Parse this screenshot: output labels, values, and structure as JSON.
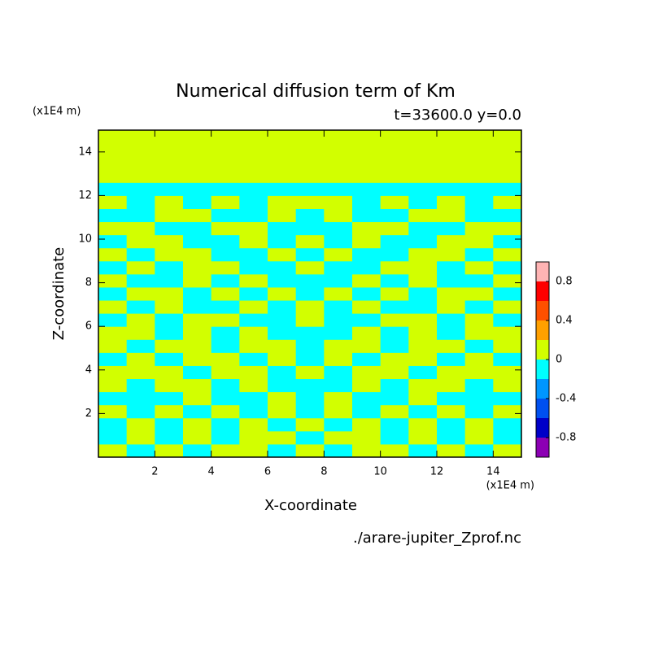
{
  "chart_data": {
    "type": "contour",
    "title": "Numerical diffusion term of Km",
    "subtitle": "t=33600.0 y=0.0",
    "xlabel": "X-coordinate",
    "ylabel": "Z-coordinate",
    "xunit": "(x1E4 m)",
    "yunit": "(x1E4 m)",
    "source": "./arare-jupiter_Zprof.nc",
    "xlim": [
      0,
      15
    ],
    "ylim": [
      0,
      15
    ],
    "xticks": [
      2,
      4,
      6,
      8,
      10,
      12,
      14
    ],
    "yticks": [
      2,
      4,
      6,
      8,
      10,
      12,
      14
    ],
    "x": [
      0.5,
      1.5,
      2.5,
      3.5,
      4.5,
      5.5,
      6.5,
      7.5,
      8.5,
      9.5,
      10.5,
      11.5,
      12.5,
      13.5,
      14.5
    ],
    "y": [
      0.3,
      0.9,
      1.5,
      2.1,
      2.7,
      3.3,
      3.9,
      4.5,
      5.1,
      5.7,
      6.3,
      6.9,
      7.5,
      8.1,
      8.7,
      9.3,
      9.9,
      10.5,
      11.1,
      11.7,
      12.3,
      12.9,
      13.5,
      14.1,
      14.7
    ],
    "z": [
      [
        0.1,
        -0.1,
        0.1,
        -0.1,
        0.1,
        0.1,
        -0.1,
        0.1,
        -0.1,
        0.1,
        0.1,
        -0.1,
        0.1,
        -0.1,
        0.1
      ],
      [
        -0.1,
        0.1,
        -0.1,
        0.1,
        -0.1,
        0.1,
        0.1,
        -0.1,
        0.1,
        0.1,
        -0.1,
        0.1,
        -0.1,
        0.1,
        -0.1
      ],
      [
        -0.1,
        0.1,
        -0.1,
        0.1,
        -0.1,
        0.1,
        -0.1,
        0.1,
        -0.1,
        0.1,
        -0.1,
        0.1,
        -0.1,
        0.1,
        -0.1
      ],
      [
        0.1,
        -0.1,
        0.1,
        -0.1,
        0.1,
        -0.1,
        0.1,
        -0.1,
        0.1,
        -0.1,
        0.1,
        -0.1,
        0.1,
        -0.1,
        0.1
      ],
      [
        -0.1,
        -0.1,
        -0.1,
        0.1,
        -0.1,
        -0.1,
        0.1,
        -0.1,
        0.1,
        -0.1,
        -0.1,
        0.1,
        -0.1,
        -0.1,
        -0.1
      ],
      [
        0.1,
        -0.1,
        0.1,
        0.1,
        -0.1,
        0.1,
        -0.1,
        -0.1,
        -0.1,
        0.1,
        -0.1,
        0.1,
        0.1,
        -0.1,
        0.1
      ],
      [
        0.1,
        0.1,
        0.1,
        -0.1,
        0.1,
        0.1,
        -0.1,
        0.1,
        -0.1,
        0.1,
        0.1,
        -0.1,
        0.1,
        0.1,
        0.1
      ],
      [
        -0.1,
        0.1,
        -0.1,
        0.1,
        0.1,
        -0.1,
        0.1,
        -0.1,
        0.1,
        -0.1,
        0.1,
        0.1,
        -0.1,
        0.1,
        -0.1
      ],
      [
        0.1,
        -0.1,
        0.1,
        0.1,
        -0.1,
        0.1,
        0.1,
        -0.1,
        0.1,
        0.1,
        -0.1,
        0.1,
        0.1,
        -0.1,
        0.1
      ],
      [
        0.1,
        0.1,
        -0.1,
        0.1,
        -0.1,
        0.1,
        -0.1,
        -0.1,
        -0.1,
        0.1,
        -0.1,
        0.1,
        -0.1,
        0.1,
        0.1
      ],
      [
        -0.1,
        0.1,
        -0.1,
        0.1,
        0.1,
        -0.1,
        -0.1,
        0.1,
        -0.1,
        -0.1,
        0.1,
        0.1,
        -0.1,
        0.1,
        -0.1
      ],
      [
        0.1,
        -0.1,
        0.1,
        -0.1,
        -0.1,
        0.1,
        -0.1,
        0.1,
        -0.1,
        0.1,
        -0.1,
        -0.1,
        0.1,
        -0.1,
        0.1
      ],
      [
        -0.1,
        0.1,
        0.1,
        -0.1,
        0.1,
        -0.1,
        0.1,
        -0.1,
        0.1,
        -0.1,
        0.1,
        -0.1,
        0.1,
        0.1,
        -0.1
      ],
      [
        0.1,
        -0.1,
        -0.1,
        0.1,
        -0.1,
        0.1,
        -0.1,
        -0.1,
        -0.1,
        0.1,
        -0.1,
        0.1,
        -0.1,
        -0.1,
        0.1
      ],
      [
        -0.1,
        0.1,
        -0.1,
        0.1,
        0.1,
        -0.1,
        -0.1,
        0.1,
        -0.1,
        -0.1,
        0.1,
        0.1,
        -0.1,
        0.1,
        -0.1
      ],
      [
        0.1,
        -0.1,
        0.1,
        0.1,
        -0.1,
        -0.1,
        0.1,
        -0.1,
        0.1,
        -0.1,
        -0.1,
        0.1,
        0.1,
        -0.1,
        0.1
      ],
      [
        -0.1,
        0.1,
        0.1,
        -0.1,
        -0.1,
        0.1,
        -0.1,
        0.1,
        -0.1,
        0.1,
        -0.1,
        -0.1,
        0.1,
        0.1,
        -0.1
      ],
      [
        0.1,
        0.1,
        -0.1,
        -0.1,
        0.1,
        0.1,
        -0.1,
        -0.1,
        -0.1,
        0.1,
        0.1,
        -0.1,
        -0.1,
        0.1,
        0.1
      ],
      [
        -0.1,
        -0.1,
        0.1,
        0.1,
        -0.1,
        -0.1,
        0.1,
        -0.1,
        0.1,
        -0.1,
        -0.1,
        0.1,
        0.1,
        -0.1,
        -0.1
      ],
      [
        0.1,
        -0.1,
        0.1,
        -0.1,
        0.1,
        -0.1,
        0.1,
        0.1,
        0.1,
        -0.1,
        0.1,
        -0.1,
        0.1,
        -0.1,
        0.1
      ],
      [
        -0.1,
        -0.1,
        -0.1,
        -0.1,
        -0.1,
        -0.1,
        -0.1,
        -0.1,
        -0.1,
        -0.1,
        -0.1,
        -0.1,
        -0.1,
        -0.1,
        -0.1
      ],
      [
        0.1,
        0.1,
        0.1,
        0.1,
        0.1,
        0.1,
        0.1,
        0.1,
        0.1,
        0.1,
        0.1,
        0.1,
        0.1,
        0.1,
        0.1
      ],
      [
        0.1,
        0.1,
        0.1,
        0.1,
        0.1,
        0.1,
        0.1,
        0.1,
        0.1,
        0.1,
        0.1,
        0.1,
        0.1,
        0.1,
        0.1
      ],
      [
        0.1,
        0.1,
        0.1,
        0.1,
        0.1,
        0.1,
        0.1,
        0.1,
        0.1,
        0.1,
        0.1,
        0.1,
        0.1,
        0.1,
        0.1
      ],
      [
        0.1,
        0.1,
        0.1,
        0.1,
        0.1,
        0.1,
        0.1,
        0.1,
        0.1,
        0.1,
        0.1,
        0.1,
        0.1,
        0.1,
        0.1
      ]
    ],
    "levels": [
      -1,
      -0.8,
      -0.6,
      -0.4,
      -0.2,
      0,
      0.2,
      0.4,
      0.6,
      0.8,
      1
    ],
    "colors": [
      "#8c00b4",
      "#0000c8",
      "#0050f0",
      "#0096ff",
      "#00ffff",
      "#d2ff00",
      "#ffa000",
      "#ff5000",
      "#ff0000",
      "#ffb4b4"
    ],
    "colorbar_ticks": [
      0.8,
      0.4,
      0,
      -0.4,
      -0.8
    ]
  }
}
